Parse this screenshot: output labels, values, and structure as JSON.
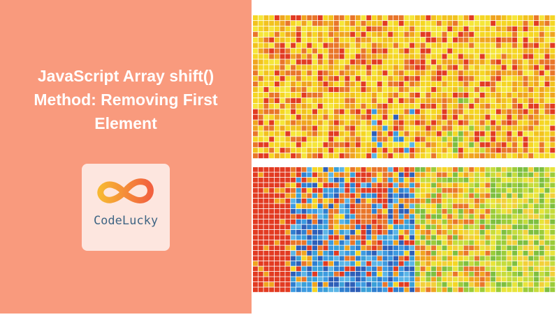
{
  "title": "JavaScript Array shift() Method: Removing First Element",
  "logo": {
    "text": "CodeLucky"
  }
}
